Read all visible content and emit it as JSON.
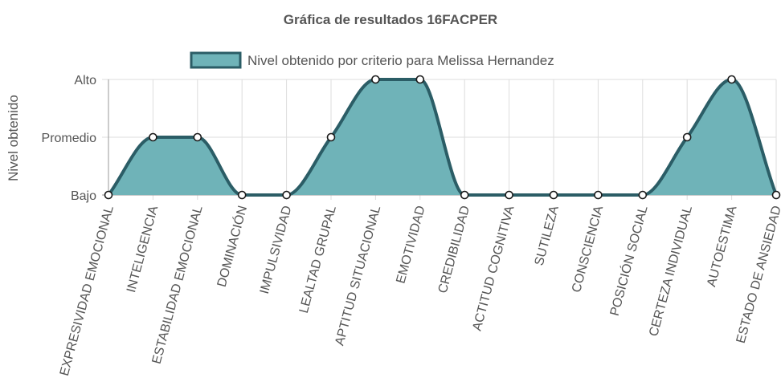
{
  "chart_data": {
    "type": "area",
    "title": "Gráfica de resultados 16FACPER",
    "ylabel": "Nivel obtenido",
    "xlabel": "",
    "y_levels": [
      "Bajo",
      "Promedio",
      "Alto"
    ],
    "ylim": [
      0,
      2
    ],
    "grid": true,
    "legend_position": "top",
    "categories": [
      "EXPRESIVIDAD EMOCIONAL",
      "INTELIGENCIA",
      "ESTABILIDAD EMOCIONAL",
      "DOMINACIÓN",
      "IMPULSIVIDAD",
      "LEALTAD GRUPAL",
      "APTITUD SITUACIONAL",
      "EMOTIVIDAD",
      "CREDIBILIDAD",
      "ACTITUD COGNITIVA",
      "SUTILEZA",
      "CONSCIENCIA",
      "POSICIÓN SOCIAL",
      "CERTEZA INDIVIDUAL",
      "AUTOESTIMA",
      "ESTADO DE ANSIEDAD"
    ],
    "series": [
      {
        "name": "Nivel obtenido por criterio para Melissa Hernandez",
        "values": [
          0,
          1,
          1,
          0,
          0,
          1,
          2,
          2,
          0,
          0,
          0,
          0,
          0,
          1,
          2,
          0
        ]
      }
    ],
    "colors": {
      "fill": "#6fb3b8",
      "line": "#2b5d66",
      "point_fill": "#ffffff",
      "point_stroke": "#1a1a1a",
      "grid": "#dddddd",
      "axis": "#999999"
    }
  }
}
